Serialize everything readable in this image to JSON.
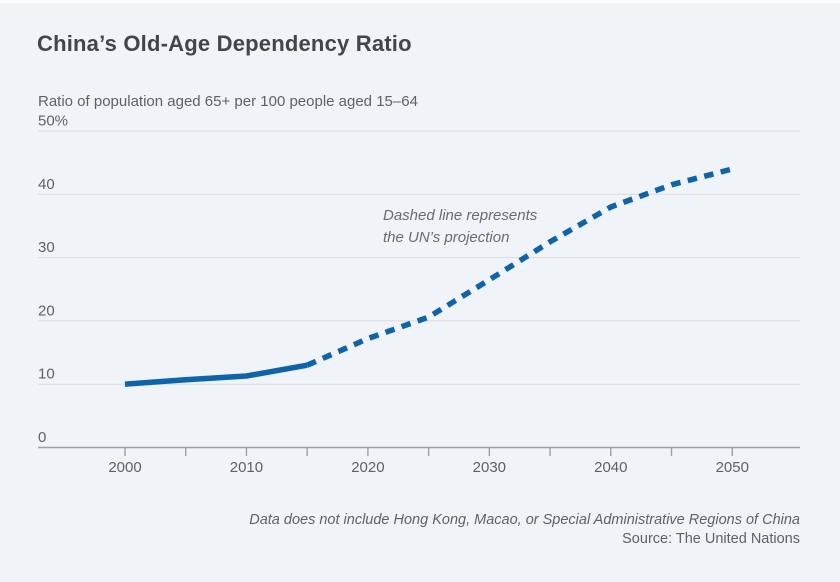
{
  "title": "China’s Old-Age Dependency Ratio",
  "subtitle": "Ratio of population aged 65+ per 100 people aged 15–64",
  "annotation": {
    "line1": "Dashed line represents",
    "line2": "the UN’s projection"
  },
  "footer": {
    "note": "Data does not include Hong Kong, Macao, or Special Administrative Regions of China",
    "source": "Source: The United Nations"
  },
  "colors": {
    "background": "#f0f4f8",
    "line": "#0f63a8",
    "grid": "#d9dcdf",
    "axis": "#9aa0a6",
    "title_text": "#3f464d",
    "muted_text": "#5b6269",
    "annotation_text": "#666c73"
  },
  "chart_data": {
    "type": "line",
    "x": [
      2000,
      2005,
      2010,
      2015,
      2020,
      2025,
      2030,
      2035,
      2040,
      2045,
      2050
    ],
    "series": [
      {
        "name": "China old-age dependency ratio",
        "values": [
          10.0,
          10.7,
          11.3,
          13.0,
          17.2,
          20.6,
          26.5,
          32.5,
          38.0,
          41.5,
          44.0
        ],
        "solid_until_x": 2015,
        "dashed_meaning": "UN projection"
      }
    ],
    "title": "China’s Old-Age Dependency Ratio",
    "xlabel": "",
    "ylabel": "Ratio of population aged 65+ per 100 people aged 15–64",
    "ylim": [
      0,
      50
    ],
    "y_ticks": [
      0,
      10,
      20,
      30,
      40,
      50
    ],
    "y_tick_labels": [
      "0",
      "10",
      "20",
      "30",
      "40",
      "50%"
    ],
    "x_ticks_minor_step": 5,
    "x_tick_labels": [
      "2000",
      "2010",
      "2020",
      "2030",
      "2040",
      "2050"
    ],
    "x_label_years": [
      2000,
      2010,
      2020,
      2030,
      2040,
      2050
    ],
    "grid": "horizontal",
    "legend": "none"
  }
}
